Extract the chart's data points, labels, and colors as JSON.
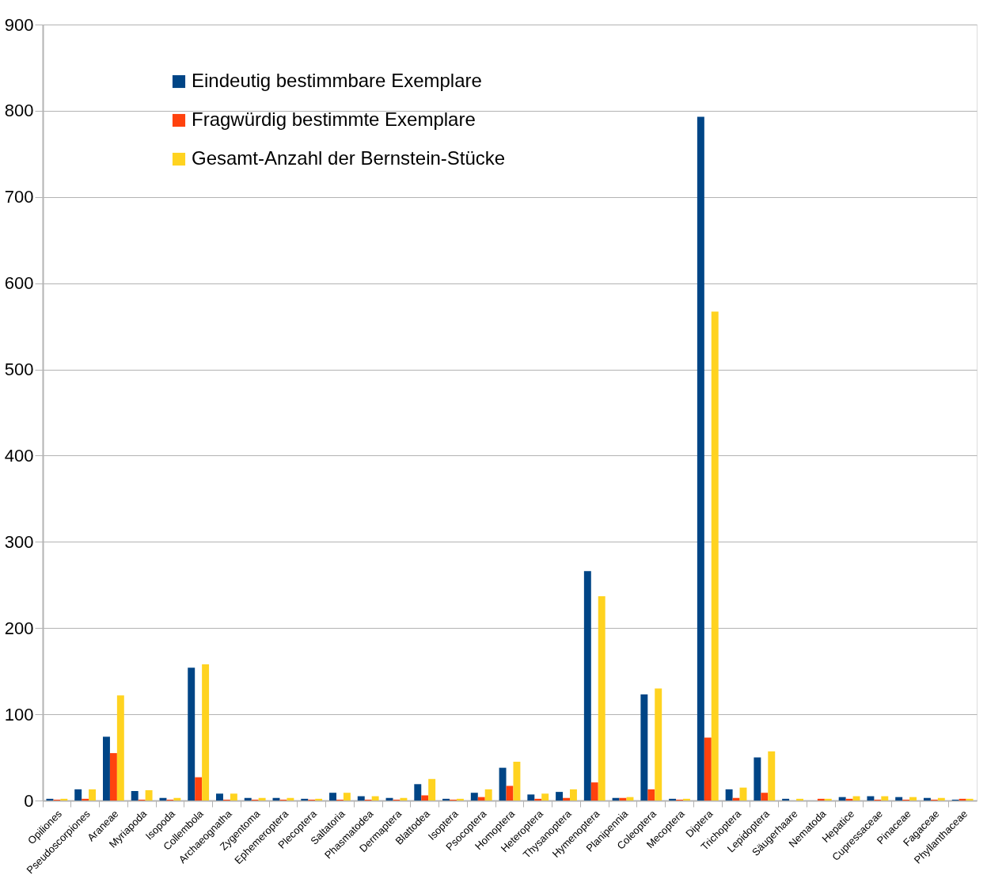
{
  "chart_data": {
    "type": "bar",
    "categories": [
      "Opiliones",
      "Pseudoscorpiones",
      "Araneae",
      "Myriapoda",
      "Isopoda",
      "Collembola",
      "Archaeognatha",
      "Zygentoma",
      "Ephemeroptera",
      "Plecoptera",
      "Saltatoria",
      "Phasmatodea",
      "Dermaptera",
      "Blattodea",
      "Isoptera",
      "Psocoptera",
      "Homoptera",
      "Heteroptera",
      "Thysanoptera",
      "Hymenoptera",
      "Planipennia",
      "Coleoptera",
      "Mecoptera",
      "Diptera",
      "Trichoptera",
      "Lepidoptera",
      "Säugerhaare",
      "Nematoda",
      "Hepatice",
      "Cupressaceae",
      "Pinaceae",
      "Fagaceae",
      "Phyllanthaceae"
    ],
    "series": [
      {
        "name": "Eindeutig bestimmbare Exemplare",
        "color": "#004586",
        "values": [
          2,
          13,
          74,
          11,
          3,
          154,
          8,
          3,
          3,
          2,
          9,
          5,
          3,
          19,
          2,
          9,
          38,
          7,
          10,
          266,
          3,
          123,
          2,
          793,
          13,
          50,
          2,
          0,
          4,
          5,
          4,
          3,
          1
        ]
      },
      {
        "name": "Fragwürdig bestimmte Exemplare",
        "color": "#ff420e",
        "values": [
          1,
          2,
          55,
          1,
          1,
          27,
          1,
          1,
          1,
          1,
          1,
          1,
          1,
          6,
          1,
          4,
          17,
          2,
          3,
          21,
          3,
          13,
          1,
          73,
          3,
          9,
          0,
          2,
          2,
          1,
          1,
          1,
          2
        ]
      },
      {
        "name": "Gesamt-Anzahl der Bernstein-Stücke",
        "color": "#ffd320",
        "values": [
          2,
          13,
          122,
          12,
          3,
          158,
          8,
          3,
          3,
          2,
          9,
          5,
          3,
          25,
          2,
          13,
          45,
          8,
          13,
          237,
          4,
          130,
          2,
          567,
          15,
          57,
          2,
          2,
          5,
          5,
          4,
          3,
          2
        ]
      }
    ],
    "ylim": [
      0,
      900
    ],
    "yticks": [
      0,
      100,
      200,
      300,
      400,
      500,
      600,
      700,
      800,
      900
    ],
    "grid": "y",
    "legend": "top left"
  }
}
